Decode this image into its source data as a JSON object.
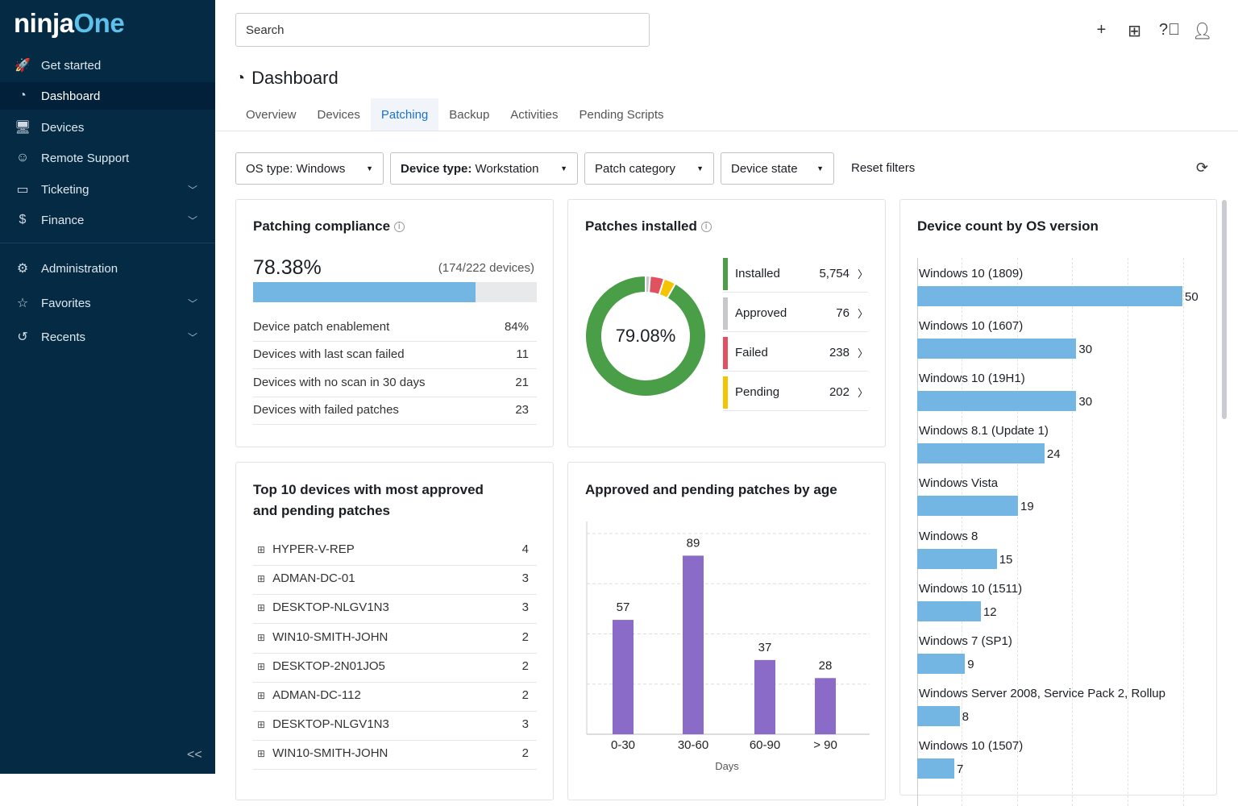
{
  "brand": {
    "logo_part1": "ninja",
    "logo_part2": "One"
  },
  "sidebar": {
    "items": [
      {
        "label": "Get started",
        "icon": "rocket-icon",
        "glyph": "🚀"
      },
      {
        "label": "Dashboard",
        "icon": "dashboard-icon",
        "glyph": "◔",
        "active": true
      },
      {
        "label": "Devices",
        "icon": "devices-icon",
        "glyph": "🖥"
      },
      {
        "label": "Remote Support",
        "icon": "remote-support-icon",
        "glyph": "☺"
      },
      {
        "label": "Ticketing",
        "icon": "ticket-icon",
        "glyph": "▭",
        "expandable": true
      },
      {
        "label": "Finance",
        "icon": "dollar-icon",
        "glyph": "$",
        "expandable": true
      },
      {
        "label": "Administration",
        "icon": "gear-icon",
        "glyph": "⚙"
      },
      {
        "label": "Favorites",
        "icon": "star-icon",
        "glyph": "☆",
        "expandable": true
      },
      {
        "label": "Recents",
        "icon": "history-icon",
        "glyph": "↺",
        "expandable": true
      }
    ]
  },
  "header": {
    "search_placeholder": "Search",
    "title": "Dashboard"
  },
  "tabs": [
    "Overview",
    "Devices",
    "Patching",
    "Backup",
    "Activities",
    "Pending Scripts"
  ],
  "active_tab": "Patching",
  "filters": {
    "os_label": "OS type:",
    "os_value": "Windows",
    "device_label": "Device type:",
    "device_value": "Workstation",
    "patch_category": "Patch category",
    "device_state": "Device state",
    "reset": "Reset filters"
  },
  "compliance": {
    "title": "Patching compliance",
    "percent": "78.38%",
    "percent_value": 78.38,
    "devices": "(174/222 devices)",
    "rows": [
      {
        "label": "Device patch enablement",
        "value": "84%"
      },
      {
        "label": "Devices with last scan failed",
        "value": "11"
      },
      {
        "label": "Devices with no scan in 30 days",
        "value": "21"
      },
      {
        "label": "Devices with failed patches",
        "value": "23"
      }
    ]
  },
  "patches": {
    "title": "Patches installed",
    "center": "79.08%",
    "items": [
      {
        "label": "Installed",
        "value": "5,754",
        "count": 5754,
        "color": "#4a9e47"
      },
      {
        "label": "Approved",
        "value": "76",
        "count": 76,
        "color": "#c6c8cc"
      },
      {
        "label": "Failed",
        "value": "238",
        "count": 238,
        "color": "#e05260"
      },
      {
        "label": "Pending",
        "value": "202",
        "count": 202,
        "color": "#f5c400"
      }
    ]
  },
  "top_devices": {
    "title_line1": "Top 10 devices with most approved",
    "title_line2": "and pending patches",
    "rows": [
      {
        "name": "HYPER-V-REP",
        "count": "4"
      },
      {
        "name": "ADMAN-DC-01",
        "count": "3"
      },
      {
        "name": "DESKTOP-NLGV1N3",
        "count": "3"
      },
      {
        "name": "WIN10-SMITH-JOHN",
        "count": "2"
      },
      {
        "name": "DESKTOP-2N01JO5",
        "count": "2"
      },
      {
        "name": "ADMAN-DC-112",
        "count": "2"
      },
      {
        "name": "DESKTOP-NLGV1N3",
        "count": "3"
      },
      {
        "name": "WIN10-SMITH-JOHN",
        "count": "2"
      }
    ]
  },
  "chart_data": [
    {
      "type": "bar",
      "title": "Approved and pending patches by age",
      "categories": [
        "0-30",
        "30-60",
        "60-90",
        "> 90"
      ],
      "values": [
        57,
        89,
        37,
        28
      ],
      "xlabel": "Days",
      "ylabel": "",
      "ylim": [
        0,
        100
      ],
      "grid": true,
      "color": "#8a6cc8"
    },
    {
      "type": "bar",
      "orientation": "horizontal",
      "title": "Device count by OS version",
      "categories": [
        "Windows 10 (1809)",
        "Windows 10 (1607)",
        "Windows 10 (19H1)",
        "Windows 8.1 (Update 1)",
        "Windows Vista",
        "Windows 8",
        "Windows 10 (1511)",
        "Windows 7 (SP1)",
        "Windows Server 2008, Service Pack 2, Rollup",
        "Windows 10 (1507)"
      ],
      "values": [
        50,
        30,
        30,
        24,
        19,
        15,
        12,
        9,
        8,
        7
      ],
      "grid": true,
      "color": "#74b6e3"
    }
  ]
}
